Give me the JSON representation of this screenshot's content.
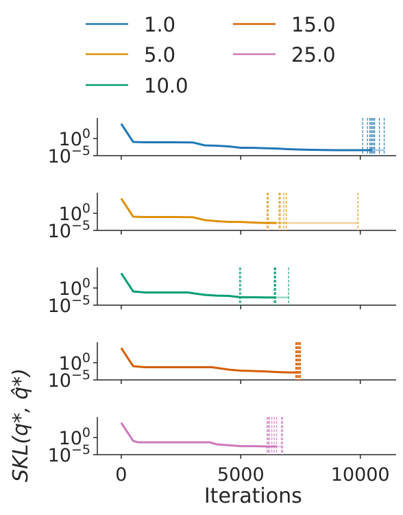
{
  "legend": {
    "entries": [
      {
        "label": "1.0",
        "color": "#1f77b4"
      },
      {
        "label": "5.0",
        "color": "#de8f05"
      },
      {
        "label": "10.0",
        "color": "#029e73"
      },
      {
        "label": "15.0",
        "color": "#d55e00"
      },
      {
        "label": "25.0",
        "color": "#cc78bc"
      }
    ]
  },
  "chart_data": [
    {
      "type": "line",
      "series_name": "1.0",
      "color": "#1f77b4",
      "x": [
        0,
        500,
        1000,
        2000,
        3000,
        3500,
        4000,
        4500,
        5000,
        5500,
        6000,
        6500,
        7000,
        7500,
        8000,
        9000,
        10000,
        10500
      ],
      "y": [
        20000,
        0.1,
        0.08,
        0.08,
        0.07,
        0.01,
        0.008,
        0.005,
        0.002,
        0.002,
        0.0015,
        0.0012,
        0.0008,
        0.0006,
        0.0005,
        0.0004,
        0.0004,
        0.0004
      ],
      "faded_x": [
        10500,
        11000
      ],
      "faded_y": [
        0.0004,
        0.0004
      ],
      "markers_x": [
        10100,
        10300,
        10400,
        10450,
        10500,
        10550,
        10600,
        10800,
        11000
      ],
      "ylim": [
        1e-05,
        1000000.0
      ],
      "yticks": [
        "10^0",
        "10^-5"
      ],
      "xlim": [
        0,
        11500
      ]
    },
    {
      "type": "line",
      "series_name": "5.0",
      "color": "#de8f05",
      "x": [
        0,
        500,
        1000,
        2000,
        3000,
        3500,
        4000,
        4500,
        5000,
        5500,
        6000,
        6500
      ],
      "y": [
        20000,
        0.1,
        0.08,
        0.08,
        0.07,
        0.01,
        0.005,
        0.003,
        0.003,
        0.002,
        0.0015,
        0.0015
      ],
      "faded_x": [
        6500,
        9900
      ],
      "faded_y": [
        0.0015,
        0.0015
      ],
      "markers_x": [
        6100,
        6150,
        6600,
        6650,
        6800,
        6900,
        9900
      ],
      "ylim": [
        1e-05,
        1000000.0
      ],
      "yticks": [
        "10^0",
        "10^-5"
      ],
      "xlim": [
        0,
        11500
      ]
    },
    {
      "type": "line",
      "series_name": "10.0",
      "color": "#029e73",
      "x": [
        0,
        500,
        1000,
        2000,
        2800,
        3000,
        3500,
        4000,
        4500,
        5000,
        5500,
        6000,
        6400
      ],
      "y": [
        20000,
        0.1,
        0.05,
        0.05,
        0.05,
        0.03,
        0.01,
        0.006,
        0.005,
        0.002,
        0.002,
        0.0018,
        0.0018
      ],
      "faded_x": [
        6400,
        7000
      ],
      "faded_y": [
        0.0018,
        0.0018
      ],
      "markers_x": [
        4950,
        5000,
        6400,
        6430,
        6460,
        7000
      ],
      "ylim": [
        1e-05,
        1000000.0
      ],
      "yticks": [
        "10^0",
        "10^-5"
      ],
      "xlim": [
        0,
        11500
      ]
    },
    {
      "type": "line",
      "series_name": "15.0",
      "color": "#d55e00",
      "x": [
        0,
        500,
        1000,
        2000,
        3000,
        3800,
        4500,
        5000,
        5500,
        6000,
        6500,
        7000,
        7300
      ],
      "y": [
        20000,
        0.1,
        0.05,
        0.05,
        0.05,
        0.05,
        0.01,
        0.005,
        0.004,
        0.003,
        0.002,
        0.0015,
        0.0015
      ],
      "faded_x": [
        7300,
        7500
      ],
      "faded_y": [
        0.0015,
        0.0015
      ],
      "markers_x": [
        7300,
        7330,
        7360,
        7400,
        7430,
        7470,
        7500
      ],
      "ylim": [
        1e-05,
        1000000.0
      ],
      "yticks": [
        "10^0",
        "10^-5"
      ],
      "xlim": [
        0,
        11500
      ]
    },
    {
      "type": "line",
      "series_name": "25.0",
      "color": "#cc78bc",
      "x": [
        0,
        500,
        700,
        1000,
        2000,
        3000,
        3700,
        4000,
        5000,
        5500,
        6000,
        6500
      ],
      "y": [
        20000,
        0.1,
        0.04,
        0.04,
        0.04,
        0.04,
        0.04,
        0.01,
        0.003,
        0.003,
        0.0025,
        0.0025
      ],
      "faded_x": [
        6500,
        6700
      ],
      "faded_y": [
        0.0025,
        0.0025
      ],
      "markers_x": [
        6100,
        6150,
        6200,
        6300,
        6400,
        6500,
        6700,
        6750
      ],
      "ylim": [
        1e-05,
        1000000.0
      ],
      "yticks": [
        "10^0",
        "10^-5"
      ],
      "xlim": [
        0,
        11500
      ],
      "xticks": [
        0,
        5000,
        10000
      ]
    }
  ],
  "axes": {
    "xlabel": "Iterations",
    "ylabel": "SKL(q*, q̂*)",
    "xtick_labels": [
      "0",
      "5000",
      "10000"
    ]
  }
}
